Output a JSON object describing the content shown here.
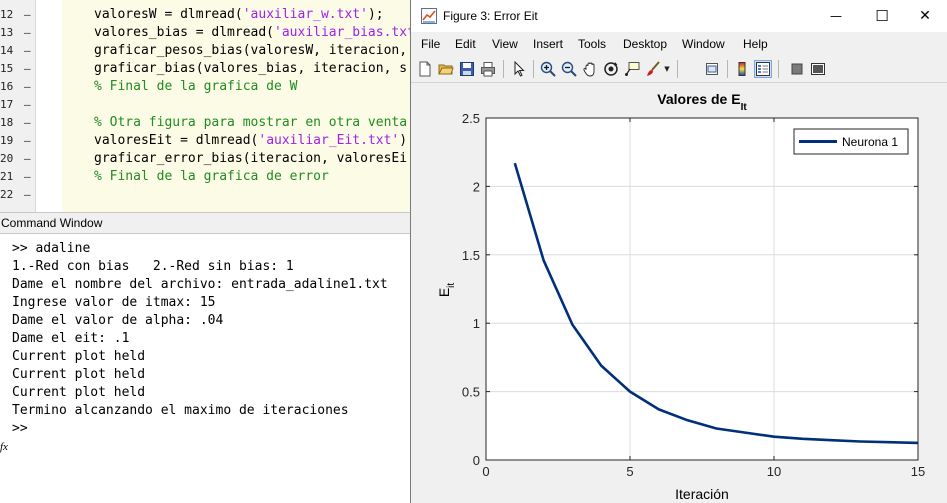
{
  "editor": {
    "line_numbers": [
      "12",
      "13",
      "14",
      "15",
      "16",
      "17",
      "18",
      "19",
      "20",
      "21",
      "22"
    ],
    "lines": [
      {
        "parts": [
          {
            "t": "valoresW = dlmread(",
            "c": ""
          },
          {
            "t": "'auxiliar_w.txt'",
            "c": "str"
          },
          {
            "t": ");",
            "c": ""
          }
        ]
      },
      {
        "parts": [
          {
            "t": "valores_bias = dlmread(",
            "c": ""
          },
          {
            "t": "'auxiliar_bias.txt",
            "c": "str"
          }
        ]
      },
      {
        "parts": [
          {
            "t": "graficar_pesos_bias(valoresW, iteracion,",
            "c": ""
          }
        ]
      },
      {
        "parts": [
          {
            "t": "graficar_bias(valores_bias, iteracion, s",
            "c": ""
          }
        ]
      },
      {
        "parts": [
          {
            "t": "% Final de la grafica de W",
            "c": "cmt"
          }
        ]
      },
      {
        "parts": []
      },
      {
        "parts": [
          {
            "t": "% Otra figura para mostrar en otra venta",
            "c": "cmt"
          }
        ]
      },
      {
        "parts": [
          {
            "t": "valoresEit = dlmread(",
            "c": ""
          },
          {
            "t": "'auxiliar_Eit.txt'",
            "c": "str"
          },
          {
            "t": ")",
            "c": ""
          }
        ]
      },
      {
        "parts": [
          {
            "t": "graficar_error_bias(iteracion, valoresEi",
            "c": ""
          }
        ]
      },
      {
        "parts": [
          {
            "t": "% Final de la grafica de error",
            "c": "cmt"
          }
        ]
      },
      {
        "parts": []
      }
    ]
  },
  "command_window": {
    "title": "Command Window",
    "lines": [
      ">> adaline",
      "1.-Red con bias   2.-Red sin bias: 1",
      "Dame el nombre del archivo: entrada_adaline1.txt",
      "Ingrese valor de itmax: 15",
      "Dame el valor de alpha: .04",
      "Dame el eit: .1",
      "Current plot held",
      "Current plot held",
      "Current plot held",
      "Termino alcanzando el maximo de iteraciones",
      ">>"
    ],
    "fx_glyph": "fx"
  },
  "figure": {
    "title": "Figure 3: Error Eit",
    "window_buttons": {
      "minimize": "—",
      "maximize": "☐",
      "close": "✕"
    },
    "menu": [
      "File",
      "Edit",
      "View",
      "Insert",
      "Tools",
      "Desktop",
      "Window",
      "Help"
    ],
    "toolbar_icons": [
      "new-figure-icon",
      "open-icon",
      "save-icon",
      "print-icon",
      "pointer-icon",
      "zoom-in-icon",
      "zoom-out-icon",
      "pan-icon",
      "rotate-icon",
      "data-cursor-icon",
      "brush-icon",
      "link-icon",
      "colorbar-icon",
      "legend-icon",
      "hide-plot-tools-icon",
      "show-plot-tools-icon"
    ]
  },
  "chart_data": {
    "type": "line",
    "title": "Valores de E",
    "title_subscript": "It",
    "xlabel": "Iteración",
    "ylabel": "E",
    "ylabel_subscript": "it",
    "xlim": [
      0,
      15
    ],
    "ylim": [
      0,
      2.5
    ],
    "xticks": [
      "0",
      "5",
      "10",
      "15"
    ],
    "yticks": [
      "0",
      "0.5",
      "1",
      "1.5",
      "2",
      "2.5"
    ],
    "grid": true,
    "legend_position": "top-right",
    "series": [
      {
        "name": "Neurona 1",
        "color": "#00307a",
        "x": [
          1,
          2,
          3,
          4,
          5,
          6,
          7,
          8,
          9,
          10,
          11,
          12,
          13,
          14,
          15
        ],
        "y": [
          2.17,
          1.46,
          0.99,
          0.69,
          0.5,
          0.37,
          0.29,
          0.23,
          0.2,
          0.17,
          0.155,
          0.145,
          0.135,
          0.13,
          0.125
        ]
      }
    ]
  }
}
